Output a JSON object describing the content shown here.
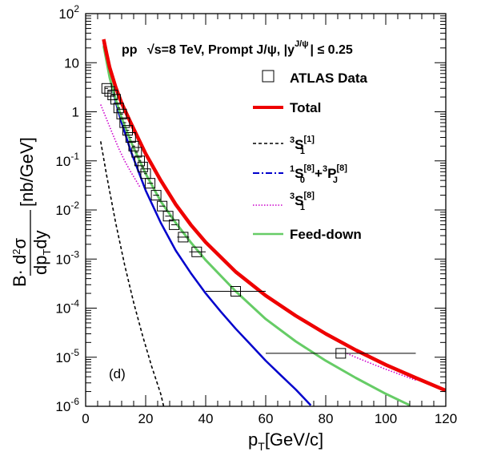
{
  "chart_data": {
    "type": "line",
    "title": "",
    "header": {
      "part1": "pp",
      "sqrt": "√",
      "part2": "s=8 TeV, Prompt J/ψ, |y",
      "sup": "J/ψ",
      "part3": "| ≤ 0.25"
    },
    "panel_label": "(d)",
    "xlabel": {
      "main": "p",
      "sub": "T",
      "rest": "[GeV/c]"
    },
    "ylabel": {
      "prefix": "B·",
      "num_d": "d",
      "num_sup": "2",
      "num_sigma": "σ",
      "den_a": "dp",
      "den_sub": "T",
      "den_b": "dy",
      "unit": "[nb/GeV]"
    },
    "xlim": [
      0,
      120
    ],
    "ylim": [
      1e-06,
      100
    ],
    "yscale": "log",
    "x_ticks": [
      "0",
      "20",
      "40",
      "60",
      "80",
      "100",
      "120"
    ],
    "y_ticks": [
      {
        "base": "10",
        "exp": "-6"
      },
      {
        "base": "10",
        "exp": "-5"
      },
      {
        "base": "10",
        "exp": "-4"
      },
      {
        "base": "10",
        "exp": "-3"
      },
      {
        "base": "10",
        "exp": "-2"
      },
      {
        "base": "10",
        "exp": "-1"
      },
      {
        "base": "1",
        "exp": ""
      },
      {
        "base": "10",
        "exp": ""
      },
      {
        "base": "10",
        "exp": "2"
      }
    ],
    "legend": [
      {
        "label": "ATLAS Data",
        "style": "box",
        "color": "#000000"
      },
      {
        "label": "Total",
        "style": "thick",
        "color": "#ee0000"
      },
      {
        "label_main": "S",
        "label_pre": "3",
        "label_sub": "1",
        "label_sup": "[1]",
        "style": "dashed",
        "color": "#000000"
      },
      {
        "label_raw": "1S0[8]+3PJ[8]",
        "style": "dashdot",
        "color": "#0000cc"
      },
      {
        "label_main": "S",
        "label_pre": "3",
        "label_sub": "1",
        "label_sup": "[8]",
        "style": "dotted",
        "color": "#cc00cc"
      },
      {
        "label": "Feed-down",
        "style": "line",
        "color": "#66cc66"
      }
    ],
    "legend_cs": {
      "a_pre": "1",
      "a_main": "S",
      "a_sub": "0",
      "a_sup": "[8]",
      "plus": "+",
      "b_pre": "3",
      "b_main": "P",
      "b_sub": "J",
      "b_sup": "[8]"
    },
    "series": [
      {
        "name": "Total",
        "color": "#ee0000",
        "x": [
          6,
          7,
          8,
          10,
          12,
          15,
          20,
          25,
          30,
          35,
          40,
          50,
          60,
          70,
          80,
          90,
          100,
          110,
          120
        ],
        "y": [
          30,
          15,
          8,
          3.2,
          1.5,
          0.6,
          0.14,
          0.04,
          0.013,
          0.005,
          0.0022,
          0.00055,
          0.00018,
          7e-05,
          3e-05,
          1.4e-05,
          7e-06,
          3.8e-06,
          2.1e-06
        ]
      },
      {
        "name": "Feed-down",
        "color": "#66cc66",
        "x": [
          6,
          8,
          10,
          12,
          15,
          20,
          25,
          30,
          35,
          40,
          50,
          60,
          70,
          80,
          90,
          100,
          108
        ],
        "y": [
          22,
          5,
          1.8,
          0.75,
          0.25,
          0.055,
          0.015,
          0.0055,
          0.0022,
          0.00095,
          0.00022,
          6e-05,
          2.1e-05,
          8.5e-06,
          3.8e-06,
          1.8e-06,
          1.05e-06
        ]
      },
      {
        "name": "1S0[8]+3PJ[8]",
        "color": "#0000cc",
        "x": [
          6,
          8,
          10,
          12,
          15,
          20,
          25,
          30,
          35,
          40,
          45,
          50,
          55,
          60,
          65,
          70,
          75
        ],
        "y": [
          25,
          5,
          1.6,
          0.6,
          0.16,
          0.025,
          0.0055,
          0.0015,
          0.00052,
          0.0002,
          8.5e-05,
          3.8e-05,
          1.8e-05,
          8.5e-06,
          4.3e-06,
          2.2e-06,
          1.05e-06
        ]
      },
      {
        "name": "3S1[8]",
        "color": "#cc00cc",
        "x": [
          5,
          7,
          9,
          11,
          13,
          15,
          18
        ],
        "y": [
          1.4,
          0.7,
          0.35,
          0.18,
          0.1,
          0.06,
          0.03
        ],
        "x2": [
          87,
          90,
          95,
          100,
          105,
          110
        ],
        "y2": [
          1.2e-05,
          1e-05,
          7.5e-06,
          5.7e-06,
          4.4e-06,
          3.4e-06
        ]
      },
      {
        "name": "3S1[1]",
        "color": "#000000",
        "x": [
          5,
          7,
          10,
          13,
          16,
          19,
          22,
          25,
          26
        ],
        "y": [
          0.25,
          0.05,
          0.0055,
          0.00075,
          0.00013,
          2.7e-05,
          6.5e-06,
          1.8e-06,
          1e-06
        ]
      }
    ],
    "data_points": [
      {
        "x": 7,
        "xlo": 6.5,
        "xhi": 7.5,
        "y": 3.0
      },
      {
        "x": 8,
        "xlo": 7.5,
        "xhi": 8.5,
        "y": 2.6
      },
      {
        "x": 9,
        "xlo": 8.5,
        "xhi": 9.5,
        "y": 2.2
      },
      {
        "x": 10,
        "xlo": 9.5,
        "xhi": 10.5,
        "y": 1.8
      },
      {
        "x": 11,
        "xlo": 10.5,
        "xhi": 11.5,
        "y": 1.2
      },
      {
        "x": 12,
        "xlo": 11.5,
        "xhi": 12.5,
        "y": 0.9
      },
      {
        "x": 13,
        "xlo": 12.5,
        "xhi": 13.5,
        "y": 0.6
      },
      {
        "x": 14,
        "xlo": 13.5,
        "xhi": 14.5,
        "y": 0.42
      },
      {
        "x": 15,
        "xlo": 14.5,
        "xhi": 15.5,
        "y": 0.3
      },
      {
        "x": 16,
        "xlo": 15.5,
        "xhi": 16.5,
        "y": 0.2
      },
      {
        "x": 17,
        "xlo": 16.5,
        "xhi": 17.5,
        "y": 0.15
      },
      {
        "x": 18,
        "xlo": 17.5,
        "xhi": 18.5,
        "y": 0.1
      },
      {
        "x": 19,
        "xlo": 18.5,
        "xhi": 19.5,
        "y": 0.075
      },
      {
        "x": 20,
        "xlo": 19.5,
        "xhi": 20.5,
        "y": 0.055
      },
      {
        "x": 21.5,
        "xlo": 20.5,
        "xhi": 22.5,
        "y": 0.035
      },
      {
        "x": 23.5,
        "xlo": 22.5,
        "xhi": 24.5,
        "y": 0.02
      },
      {
        "x": 25.5,
        "xlo": 24.5,
        "xhi": 26.5,
        "y": 0.012
      },
      {
        "x": 27.5,
        "xlo": 26.5,
        "xhi": 28.5,
        "y": 0.0075
      },
      {
        "x": 29.5,
        "xlo": 28.5,
        "xhi": 30.5,
        "y": 0.005
      },
      {
        "x": 32.5,
        "xlo": 30.5,
        "xhi": 34.5,
        "y": 0.0028
      },
      {
        "x": 37,
        "xlo": 34.5,
        "xhi": 40,
        "y": 0.0014
      },
      {
        "x": 50,
        "xlo": 40,
        "xhi": 60,
        "y": 0.00022
      },
      {
        "x": 85,
        "xlo": 60,
        "xhi": 110,
        "y": 1.2e-05
      }
    ]
  }
}
